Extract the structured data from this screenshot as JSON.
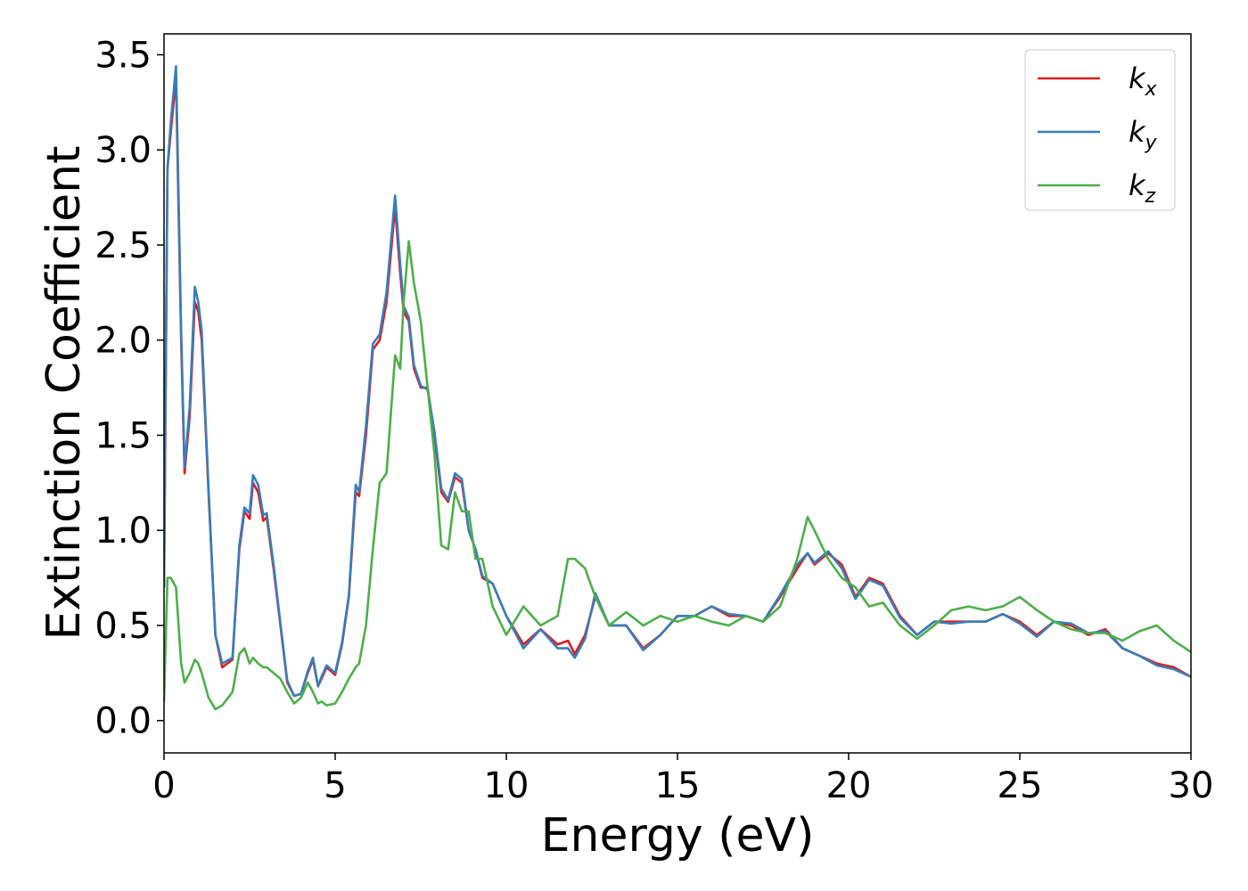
{
  "chart_data": {
    "type": "line",
    "x_label": "Energy (eV)",
    "y_label": "Extinction Coefficient",
    "xlim": [
      0,
      30
    ],
    "ylim": [
      -0.17,
      3.61
    ],
    "xticks": [
      0,
      5,
      10,
      15,
      20,
      25,
      30
    ],
    "yticks": [
      {
        "value": 0,
        "label": "0.0"
      },
      0.5,
      {
        "value": 1,
        "label": "1.0"
      },
      1.5,
      {
        "value": 2,
        "label": "2.0"
      },
      2.5,
      {
        "value": 3,
        "label": "3.0"
      },
      3.5
    ],
    "legend": "upper right",
    "x": [
      0,
      0.1,
      0.2,
      0.35,
      0.5,
      0.6,
      0.75,
      0.9,
      1.0,
      1.1,
      1.3,
      1.5,
      1.7,
      2.0,
      2.2,
      2.35,
      2.5,
      2.6,
      2.75,
      2.9,
      3.0,
      3.2,
      3.4,
      3.6,
      3.8,
      4.0,
      4.2,
      4.35,
      4.5,
      4.6,
      4.75,
      5.0,
      5.2,
      5.4,
      5.6,
      5.7,
      5.9,
      6.1,
      6.3,
      6.5,
      6.75,
      6.9,
      7.0,
      7.15,
      7.3,
      7.5,
      7.7,
      7.9,
      8.1,
      8.3,
      8.5,
      8.7,
      8.9,
      9.1,
      9.3,
      9.6,
      10.0,
      10.5,
      11.0,
      11.5,
      11.8,
      12.0,
      12.3,
      12.6,
      13.0,
      13.5,
      14.0,
      14.5,
      15.0,
      15.5,
      16.0,
      16.5,
      17.0,
      17.5,
      18.0,
      18.5,
      18.8,
      19.0,
      19.4,
      19.8,
      20.2,
      20.6,
      21.0,
      21.5,
      22.0,
      22.5,
      23.0,
      23.5,
      24.0,
      24.5,
      25.0,
      25.5,
      26.0,
      26.5,
      27.0,
      27.5,
      28.0,
      28.5,
      29.0,
      29.5,
      30.0
    ],
    "series": [
      {
        "name": "kx",
        "color": "#e41a1c",
        "values": [
          0.7,
          2.9,
          3.1,
          3.38,
          2.0,
          1.3,
          1.6,
          2.2,
          2.15,
          2.0,
          1.2,
          0.45,
          0.28,
          0.32,
          0.9,
          1.1,
          1.06,
          1.25,
          1.2,
          1.05,
          1.07,
          0.8,
          0.5,
          0.2,
          0.13,
          0.14,
          0.25,
          0.32,
          0.18,
          0.22,
          0.28,
          0.24,
          0.4,
          0.65,
          1.2,
          1.18,
          1.5,
          1.95,
          2.0,
          2.2,
          2.7,
          2.35,
          2.15,
          2.1,
          1.85,
          1.75,
          1.75,
          1.5,
          1.2,
          1.15,
          1.28,
          1.25,
          1.0,
          0.9,
          0.75,
          0.72,
          0.55,
          0.4,
          0.48,
          0.4,
          0.42,
          0.35,
          0.45,
          0.65,
          0.5,
          0.5,
          0.38,
          0.45,
          0.55,
          0.55,
          0.6,
          0.55,
          0.55,
          0.52,
          0.65,
          0.8,
          0.88,
          0.82,
          0.88,
          0.82,
          0.65,
          0.75,
          0.72,
          0.55,
          0.45,
          0.52,
          0.52,
          0.52,
          0.52,
          0.56,
          0.52,
          0.45,
          0.52,
          0.5,
          0.45,
          0.48,
          0.38,
          0.34,
          0.3,
          0.28,
          0.23
        ]
      },
      {
        "name": "ky",
        "color": "#377eb8",
        "values": [
          0.7,
          2.9,
          3.15,
          3.44,
          2.05,
          1.33,
          1.65,
          2.28,
          2.2,
          2.05,
          1.22,
          0.45,
          0.3,
          0.33,
          0.92,
          1.12,
          1.09,
          1.29,
          1.24,
          1.08,
          1.09,
          0.82,
          0.51,
          0.21,
          0.13,
          0.14,
          0.26,
          0.33,
          0.18,
          0.23,
          0.29,
          0.25,
          0.41,
          0.66,
          1.24,
          1.2,
          1.55,
          1.98,
          2.03,
          2.25,
          2.76,
          2.4,
          2.18,
          2.12,
          1.87,
          1.76,
          1.74,
          1.52,
          1.22,
          1.16,
          1.3,
          1.27,
          1.0,
          0.9,
          0.76,
          0.72,
          0.55,
          0.38,
          0.48,
          0.38,
          0.38,
          0.33,
          0.43,
          0.67,
          0.5,
          0.5,
          0.37,
          0.45,
          0.55,
          0.55,
          0.6,
          0.56,
          0.55,
          0.52,
          0.66,
          0.82,
          0.88,
          0.83,
          0.89,
          0.8,
          0.64,
          0.74,
          0.71,
          0.54,
          0.45,
          0.52,
          0.51,
          0.52,
          0.52,
          0.56,
          0.51,
          0.44,
          0.52,
          0.51,
          0.46,
          0.47,
          0.38,
          0.34,
          0.29,
          0.27,
          0.23
        ]
      },
      {
        "name": "kz",
        "color": "#4daf4a",
        "values": [
          0.1,
          0.75,
          0.75,
          0.7,
          0.3,
          0.2,
          0.25,
          0.32,
          0.3,
          0.25,
          0.12,
          0.06,
          0.08,
          0.15,
          0.35,
          0.38,
          0.3,
          0.33,
          0.3,
          0.28,
          0.28,
          0.25,
          0.22,
          0.15,
          0.09,
          0.12,
          0.2,
          0.15,
          0.09,
          0.1,
          0.08,
          0.09,
          0.15,
          0.22,
          0.28,
          0.3,
          0.5,
          0.9,
          1.25,
          1.3,
          1.92,
          1.85,
          2.2,
          2.52,
          2.3,
          2.1,
          1.75,
          1.4,
          0.92,
          0.9,
          1.2,
          1.1,
          1.1,
          0.85,
          0.85,
          0.6,
          0.45,
          0.6,
          0.5,
          0.55,
          0.85,
          0.85,
          0.8,
          0.65,
          0.5,
          0.57,
          0.5,
          0.55,
          0.52,
          0.55,
          0.52,
          0.5,
          0.55,
          0.52,
          0.6,
          0.85,
          1.07,
          1.0,
          0.85,
          0.75,
          0.7,
          0.6,
          0.62,
          0.5,
          0.43,
          0.5,
          0.58,
          0.6,
          0.58,
          0.6,
          0.65,
          0.58,
          0.52,
          0.48,
          0.46,
          0.46,
          0.42,
          0.47,
          0.5,
          0.42,
          0.36
        ]
      }
    ]
  }
}
